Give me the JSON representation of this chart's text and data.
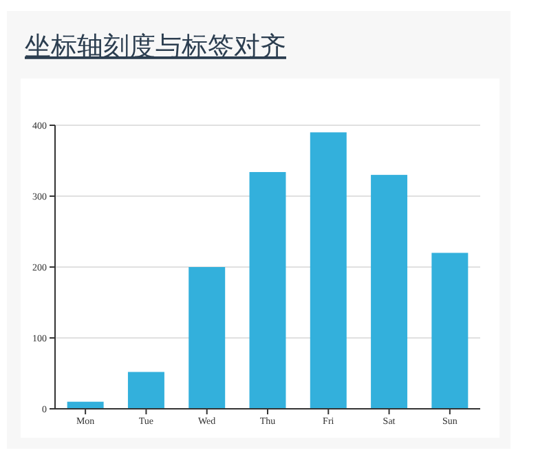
{
  "chart_data": {
    "type": "bar",
    "title": "坐标轴刻度与标签对齐",
    "categories": [
      "Mon",
      "Tue",
      "Wed",
      "Thu",
      "Fri",
      "Sat",
      "Sun"
    ],
    "values": [
      10,
      52,
      200,
      334,
      390,
      330,
      220
    ],
    "color": "#33b0dc",
    "ylim": [
      0,
      400
    ],
    "yticks": [
      0,
      100,
      200,
      300,
      400
    ],
    "grid": "y"
  }
}
